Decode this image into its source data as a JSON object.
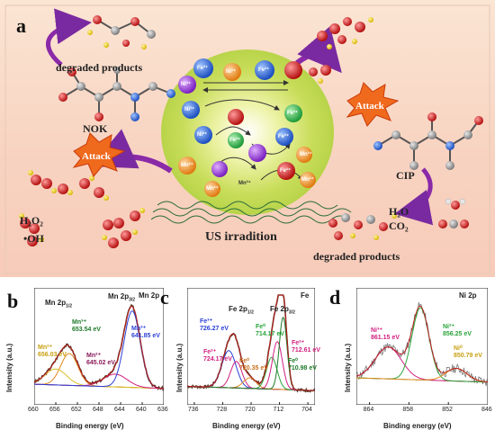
{
  "panel_a": {
    "letter": "a",
    "degraded_products_top": "degraded products",
    "degraded_products_bottom": "degraded products",
    "nok": "NOK",
    "cip": "CIP",
    "attack_left": "Attack",
    "attack_right": "Attack",
    "us_irradiation": "US irradition",
    "h2o2": "H₂O₂",
    "oh": "•OH",
    "h2o": "H₂O",
    "co2": "CO₂",
    "ion_fe3": "Fe³⁺",
    "ion_fe2": "Fe²⁺",
    "ion_ni3": "Ni³⁺",
    "ion_ni2": "Ni²⁺",
    "ion_mn3": "Mn³⁺",
    "ion_mn2": "Mn²⁺"
  },
  "chart_data": [
    {
      "type": "line",
      "panel": "b",
      "title": "Mn 2p",
      "xlabel": "Binding energy (eV)",
      "ylabel": "Intensity (a.u.)",
      "xlim": [
        660,
        636
      ],
      "xticks": [
        660,
        656,
        652,
        648,
        644,
        640,
        636
      ],
      "peak_labels": {
        "mn2p12": "Mn 2p",
        "mn2p12_sub": "1/2",
        "mn2p32": "Mn 2p",
        "mn2p32_sub": "3/2",
        "mn3": "Mn³⁺",
        "mn3_val": "653.54 eV",
        "mn2": "Mn²⁺",
        "mn2_val": "656.03 eV",
        "mn_a": "Mn²⁺",
        "mn_a_val": "645.02 eV",
        "mn_b": "Mn³⁺",
        "mn_b_val": "641.85 eV"
      },
      "peaks": [
        {
          "center": 653.5,
          "width": 1.6,
          "amp": 0.3,
          "color": "#e08a1e"
        },
        {
          "center": 656.0,
          "width": 2.0,
          "amp": 0.15,
          "color": "#d8c02a"
        },
        {
          "center": 645.0,
          "width": 2.2,
          "amp": 0.12,
          "color": "#d02080"
        },
        {
          "center": 641.85,
          "width": 1.5,
          "amp": 0.72,
          "color": "#2b3fd6"
        }
      ],
      "baseline": 0.12
    },
    {
      "type": "line",
      "panel": "c",
      "title": "Fe",
      "xlabel": "Binding energy (eV)",
      "ylabel": "Intensity (a.u.)",
      "xlim": [
        738,
        702
      ],
      "xticks": [
        736,
        728,
        720,
        712,
        704
      ],
      "peak_labels": {
        "fe2p12": "Fe 2p",
        "fe2p12_sub": "1/2",
        "fe2p32": "Fe 2p",
        "fe2p32_sub": "3/2",
        "fe3_a": "Fe³⁺",
        "fe3_a_val": "726.27 eV",
        "fe2_a": "Fe²⁺",
        "fe2_a_val": "724.17 eV",
        "fe0_a": "Fe⁰",
        "fe0_a_val": "720.35 eV",
        "fe0_b": "Fe⁰",
        "fe0_b_val": "714.17 eV",
        "fe2_b": "Fe²⁺",
        "fe2_b_val": "712.61 eV",
        "fe0_c": "Fe⁰",
        "fe0_c_val": "710.98 eV"
      },
      "peaks": [
        {
          "center": 726.27,
          "width": 2.0,
          "amp": 0.35,
          "color": "#2b3fd6"
        },
        {
          "center": 724.17,
          "width": 1.6,
          "amp": 0.25,
          "color": "#d02080"
        },
        {
          "center": 720.35,
          "width": 1.8,
          "amp": 0.1,
          "color": "#e08a1e"
        },
        {
          "center": 714.17,
          "width": 1.5,
          "amp": 0.3,
          "color": "#2aa43a"
        },
        {
          "center": 712.61,
          "width": 1.4,
          "amp": 0.45,
          "color": "#d02080"
        },
        {
          "center": 710.98,
          "width": 1.1,
          "amp": 0.68,
          "color": "#1e7a2a"
        }
      ],
      "baseline": 0.1
    },
    {
      "type": "line",
      "panel": "d",
      "title": "Ni 2p",
      "xlabel": "Binding energy (eV)",
      "ylabel": "Intensity (a.u.)",
      "xlim": [
        866,
        846
      ],
      "xticks": [
        864,
        858,
        852,
        846
      ],
      "peak_labels": {
        "ni3": "Ni³⁺",
        "ni3_val": "861.15 eV",
        "ni2": "Ni²⁺",
        "ni2_val": "856.25 eV",
        "ni0": "Ni⁰",
        "ni0_val": "850.79 eV"
      },
      "peaks": [
        {
          "center": 861.15,
          "width": 2.0,
          "amp": 0.3,
          "color": "#d02080"
        },
        {
          "center": 856.25,
          "width": 1.3,
          "amp": 0.68,
          "color": "#2aa43a"
        },
        {
          "center": 850.79,
          "width": 1.6,
          "amp": 0.12,
          "color": "#e08a1e"
        }
      ],
      "baseline": 0.18
    }
  ]
}
